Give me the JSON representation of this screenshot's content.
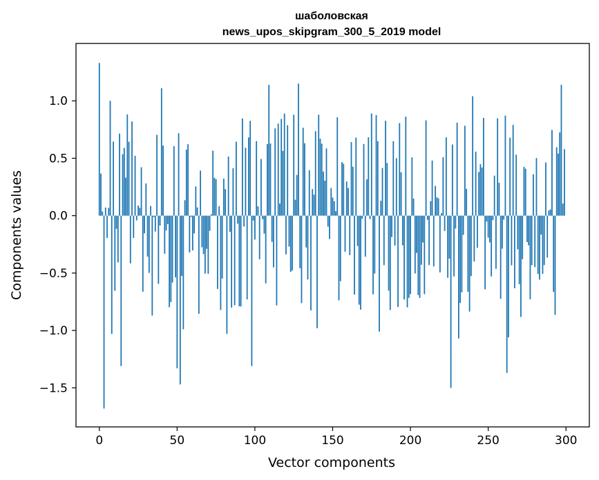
{
  "chart_data": {
    "type": "bar",
    "title_line1": "шаболовская",
    "title_line2": "news_upos_skipgram_300_5_2019 model",
    "xlabel": "Vector components",
    "ylabel": "Components values",
    "xlim": [
      -15,
      315
    ],
    "ylim": [
      -1.84,
      1.5
    ],
    "xticks": [
      0,
      50,
      100,
      150,
      200,
      250,
      300
    ],
    "yticks": [
      -1.5,
      -1.0,
      -0.5,
      0.0,
      0.5,
      1.0
    ],
    "ytick_labels": [
      "−1.5",
      "−1.0",
      "−0.5",
      "0.0",
      "0.5",
      "1.0"
    ],
    "bar_color": "#1f77b4",
    "highlight_values": [
      {
        "index": 0,
        "value": 1.33
      },
      {
        "index": 3,
        "value": -1.68
      },
      {
        "index": 7,
        "value": 1.0
      },
      {
        "index": 8,
        "value": -1.03
      },
      {
        "index": 14,
        "value": -1.31
      },
      {
        "index": 40,
        "value": 1.11
      },
      {
        "index": 50,
        "value": -1.33
      },
      {
        "index": 52,
        "value": -1.47
      },
      {
        "index": 54,
        "value": -0.99
      },
      {
        "index": 82,
        "value": -1.03
      },
      {
        "index": 98,
        "value": -1.31
      },
      {
        "index": 109,
        "value": 1.14
      },
      {
        "index": 128,
        "value": 1.15
      },
      {
        "index": 140,
        "value": -0.98
      },
      {
        "index": 180,
        "value": -1.01
      },
      {
        "index": 226,
        "value": -1.5
      },
      {
        "index": 231,
        "value": -1.07
      },
      {
        "index": 240,
        "value": 1.04
      },
      {
        "index": 262,
        "value": -1.37
      },
      {
        "index": 263,
        "value": -1.06
      },
      {
        "index": 297,
        "value": 1.14
      }
    ]
  }
}
